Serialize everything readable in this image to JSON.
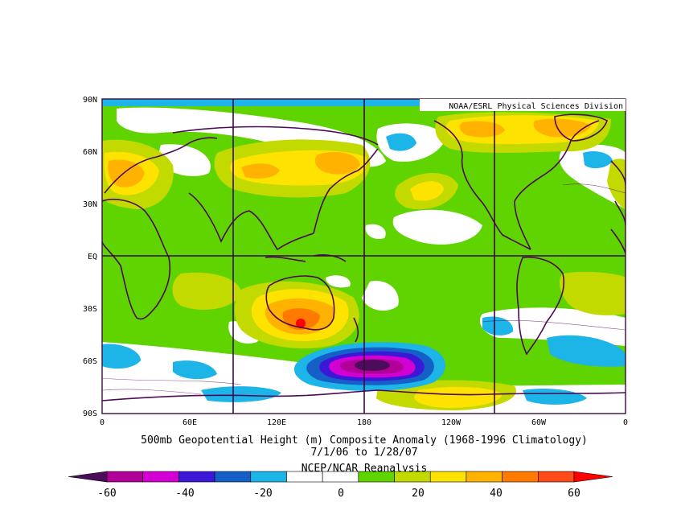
{
  "map": {
    "credit": "NOAA/ESRL Physical Sciences Division",
    "title_line1": "500mb Geopotential Height (m) Composite Anomaly (1968-1996 Climatology)",
    "title_line2": "7/1/06  to 1/28/07",
    "source": "NCEP/NCAR Reanalysis",
    "lat_labels": [
      "90N",
      "60N",
      "30N",
      "EQ",
      "30S",
      "60S",
      "90S"
    ],
    "lon_labels": [
      "0",
      "60E",
      "120E",
      "180",
      "120W",
      "60W",
      "0"
    ]
  },
  "colorbar": {
    "labels": [
      "-60",
      "-40",
      "-20",
      "0",
      "20",
      "40",
      "60"
    ],
    "colors": [
      "#4b0c5a",
      "#b00098",
      "#d300d3",
      "#3b18d8",
      "#1560c7",
      "#1db4e8",
      "#ffffff",
      "#ffffff",
      "#5fd400",
      "#c3da00",
      "#ffe300",
      "#ffb300",
      "#ff7a00",
      "#ff4a1a",
      "#ff0000"
    ]
  },
  "chart_data": {
    "type": "heatmap",
    "variable": "500mb Geopotential Height (m) Composite Anomaly",
    "period": "7/1/06 to 1/28/07",
    "climatology": "1968-1996",
    "color_levels": [
      -60,
      -50,
      -40,
      -30,
      -20,
      -10,
      0,
      10,
      20,
      30,
      40,
      50,
      60
    ],
    "x_range": [
      0,
      360
    ],
    "y_range": [
      -90,
      90
    ],
    "features": [
      {
        "lon": 35,
        "lat": 50,
        "anomaly": 40
      },
      {
        "lon": 110,
        "lat": 48,
        "anomaly": 30
      },
      {
        "lon": 140,
        "lat": 52,
        "anomaly": 40
      },
      {
        "lon": 150,
        "lat": -45,
        "anomaly": 60
      },
      {
        "lon": 185,
        "lat": -62,
        "anomaly": -60
      },
      {
        "lon": 270,
        "lat": 72,
        "anomaly": 40
      },
      {
        "lon": 305,
        "lat": 70,
        "anomaly": 40
      },
      {
        "lon": 245,
        "lat": -78,
        "anomaly": 30
      },
      {
        "lon": 280,
        "lat": 22,
        "anomaly": -10
      },
      {
        "lon": 40,
        "lat": -65,
        "anomaly": -20
      },
      {
        "lon": 330,
        "lat": -52,
        "anomaly": -20
      }
    ]
  }
}
